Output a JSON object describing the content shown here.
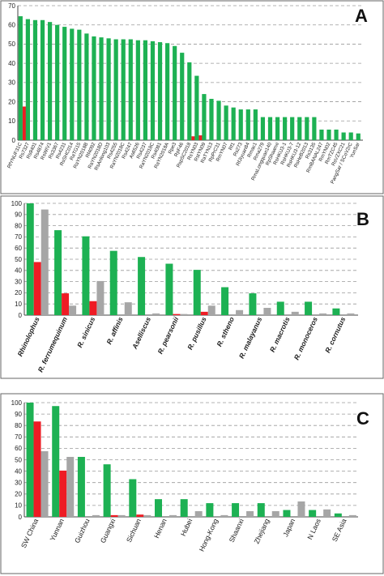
{
  "colors": {
    "green": "#1db153",
    "red": "#ee1c24",
    "grey": "#a6a6a6",
    "grid": "#9a9a9a",
    "panel_border": "#666666",
    "axis": "#444444"
  },
  "chart_data": [
    {
      "type": "bar",
      "panel_letter": "A",
      "grid": true,
      "ylim": [
        0,
        70
      ],
      "yticks": [
        0,
        10,
        20,
        30,
        40,
        50,
        60,
        70
      ],
      "categories": [
        "RfYNUF31C",
        "Rs7327",
        "Rs9401",
        "Rs4874",
        "RsWIV1",
        "Rs3367",
        "Rs4231",
        "RsSHC014",
        "RaTG15",
        "RaYN2018B",
        "Rf4092",
        "RaYN2018D",
        "RsAnlong103",
        "Rs4255",
        "RaYN2018C",
        "Rs4247",
        "As6526",
        "Rs4237",
        "RaYN2018C",
        "Rs4081",
        "RaYN2018A",
        "Rpe3",
        "RpF46",
        "RspSC2018",
        "RsYN03",
        "RstYN09",
        "RaTYN13",
        "RpPrC31",
        "RmYN07",
        "Rf1",
        "Rs273",
        "RfJiyuan84",
        "Rmac1",
        "Rma279",
        "RmaLongquan140",
        "RpShaanxi",
        "RsHKU3-1",
        "RsHKU3-7",
        "RsHKU3-12",
        "RsHeB2013",
        "Rs3135",
        "RmBANAL247",
        "RmYN02",
        "RmTZC45",
        "RsVZXC21",
        "PangSar / SCoV2rC",
        "YunSar"
      ],
      "series": [
        {
          "values": [
            64.5,
            63,
            62.5,
            62.5,
            61.5,
            60,
            59,
            58,
            57.5,
            55.5,
            54,
            53.5,
            53,
            52.5,
            52.5,
            52.5,
            52,
            52,
            51.5,
            51,
            50.5,
            49,
            45.5,
            40.5,
            33.5,
            24,
            21.5,
            20.5,
            18,
            17,
            16,
            16,
            16,
            12,
            12,
            12,
            12,
            12,
            12,
            12,
            12,
            5.5,
            5.5,
            5.5,
            4,
            4,
            3.5
          ]
        },
        {
          "values": [
            17.5,
            0,
            0,
            0,
            0,
            0,
            0,
            0,
            0,
            0,
            0,
            0,
            0,
            0,
            0,
            0,
            0,
            0,
            0,
            0,
            0,
            0,
            0,
            2,
            2.5,
            0,
            0,
            0,
            0,
            0,
            0,
            0,
            0,
            0,
            0,
            0,
            0,
            0,
            0,
            0,
            0,
            0,
            0,
            0,
            0,
            0,
            0
          ]
        },
        {
          "values": [
            0,
            0,
            0,
            0,
            0,
            0,
            0,
            0,
            0,
            0,
            0,
            0,
            0,
            0,
            0,
            0,
            0,
            0,
            0,
            0,
            0,
            0,
            0,
            0,
            0,
            0,
            0,
            0,
            0,
            0,
            0,
            0,
            0,
            0,
            0,
            0,
            0,
            0,
            0,
            0,
            0,
            0,
            0,
            0,
            0,
            0,
            0
          ]
        }
      ]
    },
    {
      "type": "bar",
      "panel_letter": "B",
      "grid": true,
      "ylim": [
        0,
        100
      ],
      "yticks": [
        0,
        10,
        20,
        30,
        40,
        50,
        60,
        70,
        80,
        90,
        100
      ],
      "categories": [
        "Rhinolophus",
        "R. ferrumequinum",
        "R. sinicus",
        "R. affinis",
        "Aselliscus",
        "R. pearsonii",
        "R. pusillus",
        "R. stheno",
        "R. malayanus",
        "R. macrotis",
        "R. monoceros",
        "R. cornutus"
      ],
      "series": [
        {
          "values": [
            100,
            76,
            70.5,
            57.5,
            52,
            46,
            40.5,
            25,
            19.5,
            12,
            12,
            6
          ]
        },
        {
          "values": [
            47.5,
            19.5,
            12.5,
            0,
            0,
            1,
            3,
            0,
            0,
            0,
            0,
            0
          ]
        },
        {
          "values": [
            94.5,
            8.5,
            30.5,
            11.5,
            1.5,
            1,
            8.5,
            4.5,
            6.5,
            3,
            1.5,
            1.5
          ]
        }
      ]
    },
    {
      "type": "bar",
      "panel_letter": "C",
      "grid": true,
      "ylim": [
        0,
        100
      ],
      "yticks": [
        0,
        10,
        20,
        30,
        40,
        50,
        60,
        70,
        80,
        90,
        100
      ],
      "categories": [
        "SW China",
        "Yunnan",
        "Guizhou",
        "Guangxi",
        "Sichuan",
        "Henan",
        "Hubei",
        "Hong-Kong",
        "Shaanxi",
        "Zhejiang",
        "Japan",
        "N Laos",
        "SE Asia"
      ],
      "series": [
        {
          "values": [
            100,
            97,
            52.5,
            46,
            33,
            15.5,
            15.5,
            12,
            12,
            12,
            6,
            6,
            3
          ]
        },
        {
          "values": [
            83.5,
            40.5,
            0,
            1.5,
            2,
            0,
            0,
            0,
            0,
            0,
            0,
            0,
            0
          ]
        },
        {
          "values": [
            57.5,
            52.5,
            1.5,
            1.5,
            1.5,
            1.5,
            5,
            1.5,
            5,
            5,
            13.5,
            6.5,
            1.5
          ]
        }
      ]
    }
  ]
}
